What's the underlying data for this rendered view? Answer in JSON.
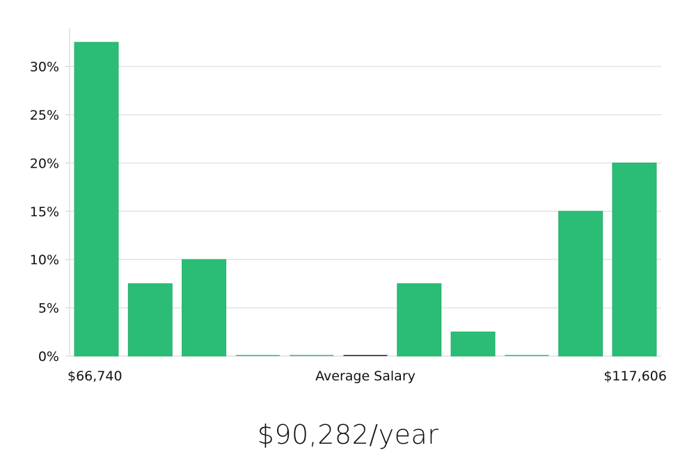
{
  "chart_data": {
    "type": "bar",
    "categories": [
      "1",
      "2",
      "3",
      "4",
      "5",
      "6",
      "7",
      "8",
      "9",
      "10",
      "11"
    ],
    "values": [
      32.5,
      7.5,
      10.0,
      0,
      0,
      0,
      7.5,
      2.5,
      0,
      15.0,
      20.0
    ],
    "ylim": [
      0,
      34
    ],
    "yticks": [
      0,
      5,
      10,
      15,
      20,
      25,
      30
    ],
    "ytick_labels": [
      "0%",
      "5%",
      "10%",
      "15%",
      "20%",
      "25%",
      "30%"
    ],
    "x_min_label": "$66,740",
    "x_max_label": "$117,606",
    "xlabel": "Average Salary",
    "grid": true,
    "bar_color": "#2bbd75",
    "bar_stroke_color": "#24b068",
    "zero_bar_highlight_index": 5,
    "zero_bar_highlight_color": "#222222"
  },
  "summary": {
    "salary_text": "$90,282/year"
  }
}
